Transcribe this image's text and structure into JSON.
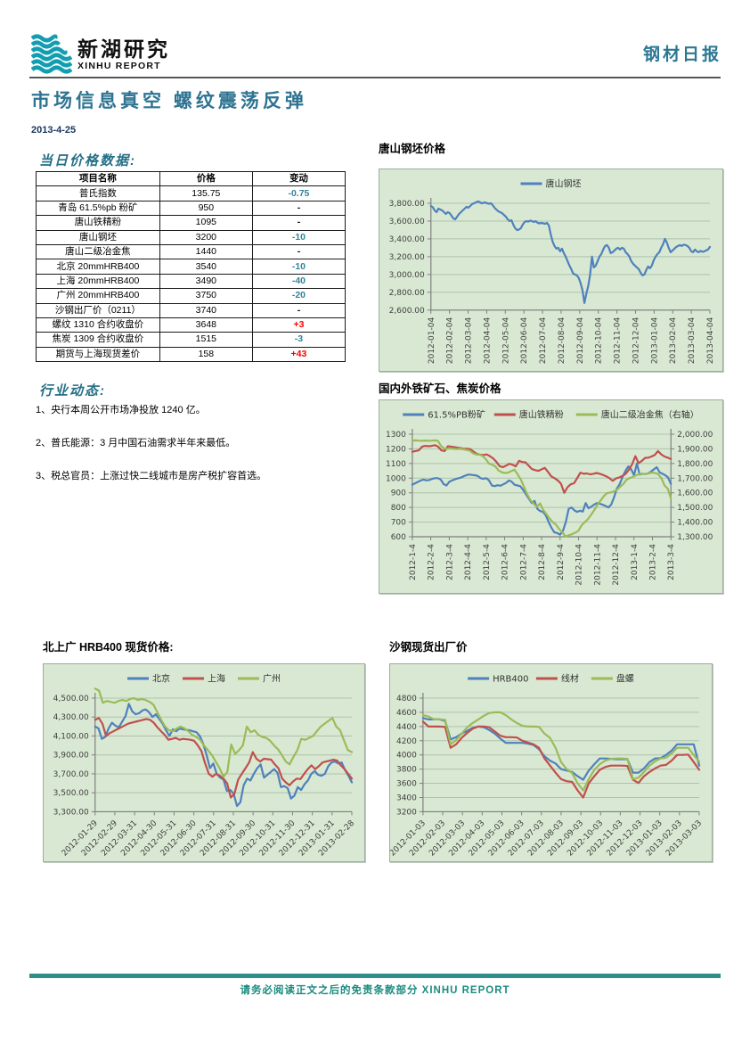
{
  "header": {
    "logo_title": "新湖研究",
    "logo_subtitle": "XINHU REPORT",
    "report_type": "钢材日报",
    "page_title": "市场信息真空 螺纹震荡反弹",
    "date": "2013-4-25"
  },
  "sections": {
    "price_heading": "当日价格数据:",
    "news_heading": "行业动态:"
  },
  "table": {
    "columns": [
      "项目名称",
      "价格",
      "变动"
    ],
    "rows": [
      [
        "普氏指数",
        "135.75",
        "-0.75"
      ],
      [
        "青岛 61.5%pb 粉矿",
        "950",
        "-"
      ],
      [
        "唐山铁精粉",
        "1095",
        "-"
      ],
      [
        "唐山钢坯",
        "3200",
        "-10"
      ],
      [
        "唐山二级冶金焦",
        "1440",
        "-"
      ],
      [
        "北京 20mmHRB400",
        "3540",
        "-10"
      ],
      [
        "上海 20mmHRB400",
        "3490",
        "-40"
      ],
      [
        "广州 20mmHRB400",
        "3750",
        "-20"
      ],
      [
        "沙钢出厂价（0211）",
        "3740",
        "-"
      ],
      [
        "螺纹 1310 合约收盘价",
        "3648",
        "+3"
      ],
      [
        "焦炭 1309 合约收盘价",
        "1515",
        "-3"
      ],
      [
        "期货与上海现货差价",
        "158",
        "+43"
      ]
    ]
  },
  "news": {
    "items": [
      "1、央行本周公开市场净投放 1240 亿。",
      "2、普氏能源：3 月中国石油需求半年来最低。",
      "3、税总官员：上涨过快二线城市是房产税扩容首选。"
    ]
  },
  "colors": {
    "accent_teal": "#246f86",
    "change_down": "#31849b",
    "change_up": "#ff0000",
    "footer_teal": "#1b8b80",
    "series_blue": "#4f81bd",
    "series_red": "#c0504d",
    "series_green": "#9bbb59"
  },
  "footer": {
    "disclaimer": "请务必阅读正文之后的免责条款部分 XINHU REPORT"
  },
  "chart_data": [
    {
      "type": "line",
      "title": "唐山钢坯价格",
      "x_rotation": 90,
      "x_labels": [
        "2012-01-04",
        "2012-02-04",
        "2012-03-04",
        "2012-04-04",
        "2012-05-04",
        "2012-06-04",
        "2012-07-04",
        "2012-08-04",
        "2012-09-04",
        "2012-10-04",
        "2012-11-04",
        "2012-12-04",
        "2013-01-04",
        "2013-02-04",
        "2013-03-04",
        "2013-04-04"
      ],
      "left_axis": {
        "min": 2600,
        "max": 3800,
        "ticks": [
          "2,600.00",
          "2,800.00",
          "3,000.00",
          "3,200.00",
          "3,400.00",
          "3,600.00",
          "3,800.00"
        ]
      },
      "series": [
        {
          "name": "唐山钢坯",
          "color": "#4f81bd",
          "axis": "left",
          "values": [
            3770,
            3755,
            3720,
            3700,
            3740,
            3730,
            3720,
            3700,
            3680,
            3700,
            3690,
            3660,
            3630,
            3620,
            3650,
            3680,
            3700,
            3720,
            3740,
            3760,
            3750,
            3770,
            3790,
            3800,
            3810,
            3820,
            3815,
            3800,
            3805,
            3810,
            3800,
            3795,
            3800,
            3780,
            3750,
            3730,
            3710,
            3700,
            3690,
            3670,
            3650,
            3620,
            3600,
            3610,
            3560,
            3520,
            3500,
            3505,
            3520,
            3560,
            3590,
            3600,
            3595,
            3605,
            3600,
            3590,
            3600,
            3580,
            3575,
            3580,
            3575,
            3570,
            3580,
            3550,
            3450,
            3370,
            3320,
            3290,
            3300,
            3260,
            3290,
            3240,
            3200,
            3150,
            3100,
            3060,
            3010,
            3000,
            2990,
            2960,
            2900,
            2820,
            2680,
            2780,
            2870,
            3000,
            3200,
            3080,
            3100,
            3150,
            3200,
            3230,
            3280,
            3320,
            3330,
            3300,
            3240,
            3250,
            3270,
            3290,
            3300,
            3280,
            3300,
            3290,
            3250,
            3230,
            3200,
            3150,
            3120,
            3100,
            3080,
            3060,
            3020,
            2990,
            3000,
            3050,
            3090,
            3070,
            3100,
            3160,
            3200,
            3230,
            3250,
            3300,
            3340,
            3400,
            3360,
            3300,
            3250,
            3270,
            3290,
            3310,
            3320,
            3330,
            3320,
            3335,
            3330,
            3320,
            3300,
            3260,
            3250,
            3280,
            3260,
            3250,
            3265,
            3255,
            3260,
            3270,
            3280,
            3310
          ]
        }
      ]
    },
    {
      "type": "line",
      "title": "国内外铁矿石、焦炭价格",
      "x_rotation": 90,
      "x_labels": [
        "2012-1-4",
        "2012-2-4",
        "2012-3-4",
        "2012-4-4",
        "2012-5-4",
        "2012-6-4",
        "2012-7-4",
        "2012-8-4",
        "2012-9-4",
        "2012-10-4",
        "2012-11-4",
        "2012-12-4",
        "2013-1-4",
        "2013-2-4",
        "2013-3-4"
      ],
      "left_axis": {
        "min": 600,
        "max": 1300,
        "ticks": [
          "600",
          "700",
          "800",
          "900",
          "1000",
          "1100",
          "1200",
          "1300"
        ]
      },
      "right_axis": {
        "min": 1300,
        "max": 2000,
        "ticks": [
          "1,300.00",
          "1,400.00",
          "1,500.00",
          "1,600.00",
          "1,700.00",
          "1,800.00",
          "1,900.00",
          "2,000.00"
        ]
      },
      "series": [
        {
          "name": "61.5%PB粉矿",
          "color": "#4f81bd",
          "axis": "left",
          "values": [
            955,
            965,
            975,
            985,
            990,
            985,
            988,
            995,
            1000,
            1000,
            990,
            960,
            950,
            975,
            985,
            992,
            998,
            1003,
            1012,
            1020,
            1025,
            1022,
            1020,
            1015,
            1000,
            995,
            1000,
            985,
            950,
            945,
            952,
            948,
            958,
            968,
            985,
            975,
            955,
            950,
            945,
            920,
            890,
            860,
            830,
            845,
            790,
            775,
            770,
            745,
            700,
            660,
            630,
            625,
            615,
            640,
            700,
            790,
            800,
            780,
            770,
            778,
            772,
            830,
            795,
            805,
            820,
            830,
            825,
            818,
            810,
            800,
            820,
            870,
            930,
            960,
            1010,
            1050,
            1080,
            1060,
            1020,
            1100,
            1025,
            1030,
            1028,
            1032,
            1045,
            1060,
            1075,
            1040,
            1030,
            1020,
            1005,
            960
          ]
        },
        {
          "name": "唐山铁精粉",
          "color": "#c0504d",
          "axis": "left",
          "values": [
            1180,
            1185,
            1190,
            1215,
            1220,
            1218,
            1220,
            1225,
            1215,
            1190,
            1185,
            1218,
            1215,
            1212,
            1208,
            1205,
            1200,
            1200,
            1198,
            1180,
            1165,
            1160,
            1158,
            1162,
            1150,
            1135,
            1112,
            1082,
            1075,
            1085,
            1098,
            1092,
            1080,
            1118,
            1110,
            1108,
            1085,
            1062,
            1055,
            1050,
            1060,
            1070,
            1042,
            1012,
            1000,
            985,
            962,
            900,
            938,
            958,
            965,
            1000,
            1038,
            1030,
            1032,
            1026,
            1030,
            1035,
            1030,
            1022,
            1012,
            1000,
            982,
            998,
            1005,
            1015,
            1030,
            1058,
            1095,
            1150,
            1102,
            1118,
            1138,
            1140,
            1148,
            1158,
            1185,
            1162,
            1148,
            1140,
            1130
          ]
        },
        {
          "name": "唐山二级冶金焦（右轴）",
          "color": "#9bbb59",
          "axis": "right",
          "values": [
            1955,
            1958,
            1956,
            1955,
            1957,
            1955,
            1956,
            1958,
            1955,
            1920,
            1902,
            1900,
            1903,
            1900,
            1899,
            1900,
            1897,
            1892,
            1888,
            1870,
            1862,
            1860,
            1852,
            1830,
            1800,
            1792,
            1780,
            1752,
            1740,
            1735,
            1738,
            1748,
            1758,
            1725,
            1690,
            1640,
            1590,
            1550,
            1525,
            1505,
            1528,
            1482,
            1455,
            1425,
            1400,
            1382,
            1352,
            1330,
            1302,
            1310,
            1318,
            1328,
            1340,
            1378,
            1400,
            1420,
            1450,
            1482,
            1520,
            1548,
            1578,
            1598,
            1602,
            1608,
            1618,
            1640,
            1658,
            1688,
            1700,
            1708,
            1718,
            1728,
            1730,
            1728,
            1732,
            1738,
            1735,
            1728,
            1700,
            1650,
            1628,
            1560
          ]
        }
      ]
    },
    {
      "type": "line",
      "title": "北上广 HRB400 现货价格:",
      "x_rotation": 45,
      "x_labels": [
        "2012-01-29",
        "2012-02-29",
        "2012-03-31",
        "2012-04-30",
        "2012-05-31",
        "2012-06-30",
        "2012-07-31",
        "2012-08-31",
        "2012-09-30",
        "2012-10-31",
        "2012-11-30",
        "2012-12-31",
        "2013-01-31",
        "2013-02-28"
      ],
      "left_axis": {
        "min": 3300,
        "max": 4500,
        "ticks": [
          "3,300.00",
          "3,500.00",
          "3,700.00",
          "3,900.00",
          "4,100.00",
          "4,300.00",
          "4,500.00"
        ]
      },
      "series": [
        {
          "name": "北京",
          "color": "#4f81bd",
          "axis": "left",
          "values": [
            4200,
            4180,
            4070,
            4090,
            4180,
            4240,
            4210,
            4190,
            4250,
            4310,
            4440,
            4360,
            4330,
            4340,
            4370,
            4380,
            4350,
            4300,
            4330,
            4280,
            4230,
            4160,
            4100,
            4170,
            4150,
            4180,
            4170,
            4165,
            4160,
            4150,
            4140,
            4100,
            4020,
            3900,
            3760,
            3810,
            3700,
            3660,
            3640,
            3520,
            3530,
            3490,
            3360,
            3400,
            3580,
            3650,
            3630,
            3700,
            3760,
            3800,
            3660,
            3690,
            3720,
            3750,
            3710,
            3560,
            3570,
            3550,
            3440,
            3470,
            3560,
            3530,
            3590,
            3630,
            3700,
            3730,
            3690,
            3680,
            3700,
            3780,
            3820,
            3830,
            3810,
            3820,
            3740,
            3680,
            3610
          ]
        },
        {
          "name": "上海",
          "color": "#c0504d",
          "axis": "left",
          "values": [
            4270,
            4290,
            4230,
            4100,
            4130,
            4150,
            4170,
            4190,
            4210,
            4230,
            4240,
            4250,
            4260,
            4270,
            4280,
            4270,
            4240,
            4190,
            4150,
            4110,
            4060,
            4070,
            4080,
            4060,
            4070,
            4065,
            4060,
            4050,
            4000,
            3940,
            3810,
            3700,
            3670,
            3700,
            3680,
            3650,
            3600,
            3450,
            3490,
            3640,
            3700,
            3760,
            3820,
            3930,
            3860,
            3830,
            3860,
            3855,
            3850,
            3800,
            3760,
            3650,
            3610,
            3580,
            3620,
            3650,
            3645,
            3700,
            3750,
            3790,
            3750,
            3780,
            3820,
            3830,
            3840,
            3850,
            3840,
            3790,
            3750,
            3700,
            3650
          ]
        },
        {
          "name": "广州",
          "color": "#9bbb59",
          "axis": "left",
          "values": [
            4600,
            4580,
            4450,
            4470,
            4460,
            4450,
            4470,
            4480,
            4470,
            4490,
            4500,
            4480,
            4490,
            4480,
            4460,
            4430,
            4350,
            4270,
            4200,
            4160,
            4150,
            4180,
            4200,
            4180,
            4150,
            4110,
            4090,
            4060,
            4000,
            3950,
            3900,
            3830,
            3760,
            3670,
            3720,
            4010,
            3910,
            3950,
            4000,
            4200,
            4140,
            4160,
            4110,
            4090,
            4080,
            4050,
            4000,
            3960,
            3900,
            3830,
            3800,
            3880,
            3950,
            4070,
            4060,
            4080,
            4100,
            4150,
            4200,
            4230,
            4260,
            4290,
            4200,
            4160,
            4050,
            3950,
            3930
          ]
        }
      ]
    },
    {
      "type": "line",
      "title": "沙钢现货出厂价",
      "x_rotation": 45,
      "x_labels": [
        "2012-01-03",
        "2012-02-03",
        "2012-03-03",
        "2012-04-03",
        "2012-05-03",
        "2012-06-03",
        "2012-07-03",
        "2012-08-03",
        "2012-09-03",
        "2012-10-03",
        "2012-11-03",
        "2012-12-03",
        "2013-01-03",
        "2013-02-03",
        "2013-03-03"
      ],
      "left_axis": {
        "min": 3200,
        "max": 4800,
        "ticks": [
          "3200",
          "3400",
          "3600",
          "3800",
          "4000",
          "4200",
          "4400",
          "4600",
          "4800"
        ]
      },
      "series": [
        {
          "name": "HRB400",
          "color": "#4f81bd",
          "axis": "left",
          "values": [
            4520,
            4500,
            4500,
            4500,
            4480,
            4220,
            4250,
            4300,
            4340,
            4380,
            4400,
            4390,
            4350,
            4300,
            4230,
            4170,
            4170,
            4170,
            4170,
            4160,
            4140,
            4080,
            3980,
            3920,
            3880,
            3800,
            3780,
            3760,
            3700,
            3650,
            3780,
            3870,
            3950,
            3950,
            3945,
            3940,
            3940,
            3940,
            3750,
            3750,
            3810,
            3900,
            3950,
            3955,
            4000,
            4060,
            4150,
            4150,
            4150,
            4150,
            3850
          ]
        },
        {
          "name": "线材",
          "color": "#c0504d",
          "axis": "left",
          "values": [
            4470,
            4400,
            4400,
            4400,
            4395,
            4100,
            4150,
            4240,
            4310,
            4370,
            4400,
            4400,
            4390,
            4330,
            4270,
            4250,
            4250,
            4245,
            4200,
            4175,
            4150,
            4100,
            3950,
            3850,
            3750,
            3660,
            3630,
            3620,
            3500,
            3400,
            3600,
            3700,
            3790,
            3830,
            3850,
            3850,
            3850,
            3845,
            3650,
            3605,
            3700,
            3760,
            3810,
            3850,
            3860,
            3920,
            4000,
            4000,
            4005,
            3900,
            3790
          ]
        },
        {
          "name": "盘螺",
          "color": "#9bbb59",
          "axis": "left",
          "values": [
            4560,
            4540,
            4500,
            4500,
            4495,
            4150,
            4210,
            4300,
            4390,
            4450,
            4500,
            4550,
            4590,
            4600,
            4600,
            4560,
            4500,
            4450,
            4410,
            4400,
            4400,
            4395,
            4300,
            4240,
            4100,
            3900,
            3800,
            3745,
            3600,
            3500,
            3660,
            3790,
            3870,
            3920,
            3945,
            3950,
            3950,
            3945,
            3660,
            3680,
            3760,
            3850,
            3910,
            3950,
            3960,
            4020,
            4100,
            4100,
            4100,
            4000,
            3905
          ]
        }
      ]
    }
  ]
}
